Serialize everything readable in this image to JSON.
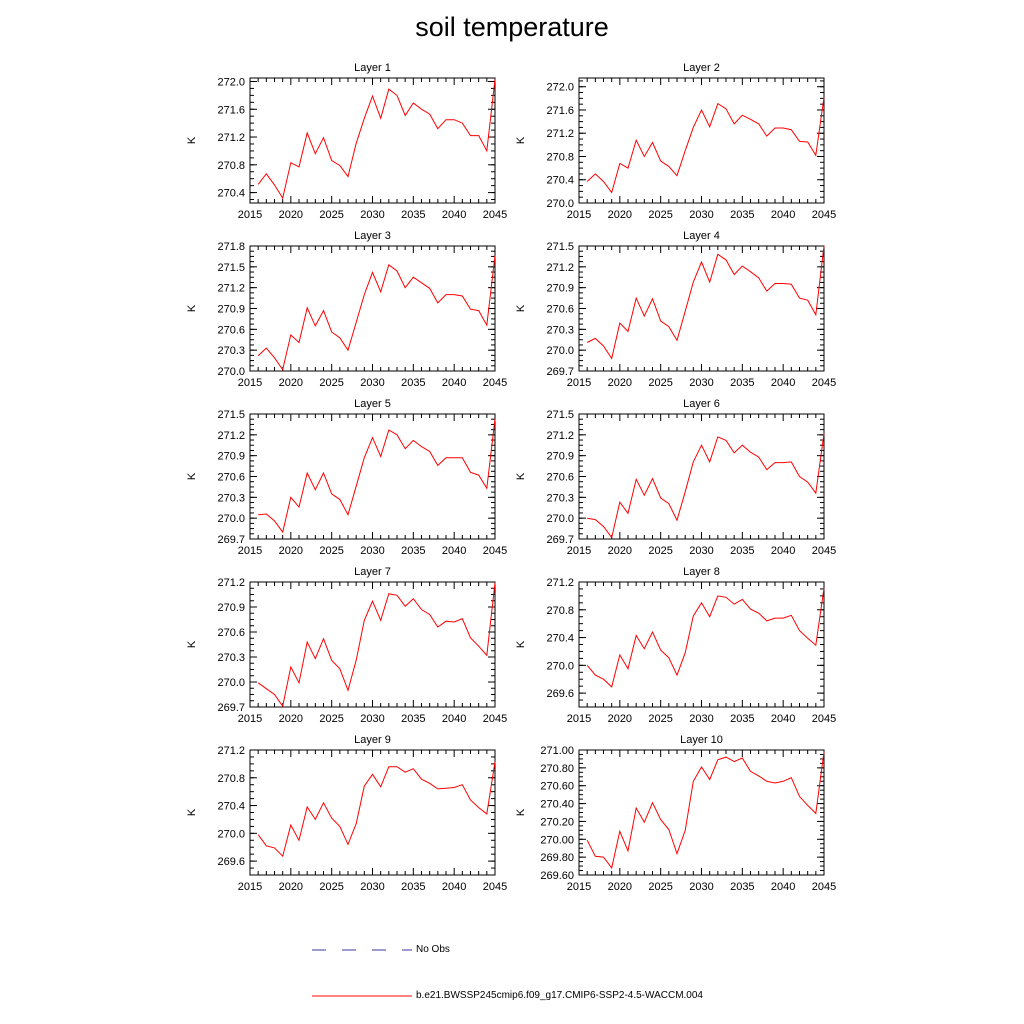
{
  "title": "soil temperature",
  "x_ticks": [
    "2015",
    "2020",
    "2025",
    "2030",
    "2035",
    "2040",
    "2045"
  ],
  "legend": {
    "obs_label": "No Obs",
    "obs_color": "#3a3aa0",
    "model_label": "b.e21.BWSSP245cmip6.f09_g17.CMIP6-SSP2-4.5-WACCM.004",
    "model_color": "#ff0000"
  },
  "chart_data": [
    {
      "type": "line",
      "title": "Layer 1",
      "ylabel": "K",
      "xlim": [
        2015,
        2045
      ],
      "ylim": [
        270.25,
        272.05
      ],
      "yticks": [
        "270.4",
        "270.8",
        "271.2",
        "271.6",
        "272.0"
      ],
      "x": [
        2016,
        2017,
        2018,
        2019,
        2020,
        2021,
        2022,
        2023,
        2024,
        2025,
        2026,
        2027,
        2028,
        2029,
        2030,
        2031,
        2032,
        2033,
        2034,
        2035,
        2036,
        2037,
        2038,
        2039,
        2040,
        2041,
        2042,
        2043,
        2044,
        2045
      ],
      "series": [
        {
          "values": [
            270.52,
            270.67,
            270.51,
            270.32,
            270.83,
            270.77,
            271.26,
            270.96,
            271.19,
            270.86,
            270.79,
            270.63,
            271.11,
            271.47,
            271.79,
            271.47,
            271.89,
            271.8,
            271.51,
            271.69,
            271.6,
            271.53,
            271.32,
            271.45,
            271.45,
            271.4,
            271.22,
            271.22,
            271.0,
            272.03
          ]
        }
      ]
    },
    {
      "type": "line",
      "title": "Layer 2",
      "ylabel": "K",
      "xlim": [
        2015,
        2045
      ],
      "ylim": [
        270.0,
        272.15
      ],
      "yticks": [
        "270.0",
        "270.4",
        "270.8",
        "271.2",
        "271.6",
        "272.0"
      ],
      "x": [
        2016,
        2017,
        2018,
        2019,
        2020,
        2021,
        2022,
        2023,
        2024,
        2025,
        2026,
        2027,
        2028,
        2029,
        2030,
        2031,
        2032,
        2033,
        2034,
        2035,
        2036,
        2037,
        2038,
        2039,
        2040,
        2041,
        2042,
        2043,
        2044,
        2045
      ],
      "series": [
        {
          "values": [
            270.37,
            270.5,
            270.37,
            270.18,
            270.68,
            270.6,
            271.08,
            270.8,
            271.04,
            270.72,
            270.63,
            270.47,
            270.9,
            271.3,
            271.6,
            271.31,
            271.71,
            271.62,
            271.36,
            271.51,
            271.44,
            271.36,
            271.15,
            271.29,
            271.29,
            271.26,
            271.06,
            271.05,
            270.82,
            271.82
          ]
        }
      ]
    },
    {
      "type": "line",
      "title": "Layer 3",
      "ylabel": "K",
      "xlim": [
        2015,
        2045
      ],
      "ylim": [
        270.0,
        271.8
      ],
      "yticks": [
        "270.0",
        "270.3",
        "270.6",
        "270.9",
        "271.2",
        "271.5",
        "271.8"
      ],
      "x": [
        2016,
        2017,
        2018,
        2019,
        2020,
        2021,
        2022,
        2023,
        2024,
        2025,
        2026,
        2027,
        2028,
        2029,
        2030,
        2031,
        2032,
        2033,
        2034,
        2035,
        2036,
        2037,
        2038,
        2039,
        2040,
        2041,
        2042,
        2043,
        2044,
        2045
      ],
      "series": [
        {
          "values": [
            270.22,
            270.33,
            270.19,
            270.02,
            270.52,
            270.41,
            270.91,
            270.65,
            270.87,
            270.56,
            270.48,
            270.3,
            270.7,
            271.1,
            271.42,
            271.14,
            271.53,
            271.44,
            271.2,
            271.35,
            271.27,
            271.19,
            270.98,
            271.1,
            271.1,
            271.08,
            270.89,
            270.87,
            270.66,
            271.66
          ]
        }
      ]
    },
    {
      "type": "line",
      "title": "Layer 4",
      "ylabel": "K",
      "xlim": [
        2015,
        2045
      ],
      "ylim": [
        269.7,
        271.5
      ],
      "yticks": [
        "269.7",
        "270.0",
        "270.3",
        "270.6",
        "270.9",
        "271.2",
        "271.5"
      ],
      "x": [
        2016,
        2017,
        2018,
        2019,
        2020,
        2021,
        2022,
        2023,
        2024,
        2025,
        2026,
        2027,
        2028,
        2029,
        2030,
        2031,
        2032,
        2033,
        2034,
        2035,
        2036,
        2037,
        2038,
        2039,
        2040,
        2041,
        2042,
        2043,
        2044,
        2045
      ],
      "series": [
        {
          "values": [
            270.11,
            270.17,
            270.06,
            269.88,
            270.39,
            270.27,
            270.75,
            270.49,
            270.74,
            270.42,
            270.34,
            270.14,
            270.56,
            270.98,
            271.27,
            270.98,
            271.38,
            271.3,
            271.09,
            271.21,
            271.13,
            271.04,
            270.85,
            270.96,
            270.96,
            270.95,
            270.75,
            270.72,
            270.51,
            271.5
          ]
        }
      ]
    },
    {
      "type": "line",
      "title": "Layer 5",
      "ylabel": "K",
      "xlim": [
        2015,
        2045
      ],
      "ylim": [
        269.7,
        271.5
      ],
      "yticks": [
        "269.7",
        "270.0",
        "270.3",
        "270.6",
        "270.9",
        "271.2",
        "271.5"
      ],
      "x": [
        2016,
        2017,
        2018,
        2019,
        2020,
        2021,
        2022,
        2023,
        2024,
        2025,
        2026,
        2027,
        2028,
        2029,
        2030,
        2031,
        2032,
        2033,
        2034,
        2035,
        2036,
        2037,
        2038,
        2039,
        2040,
        2041,
        2042,
        2043,
        2044,
        2045
      ],
      "series": [
        {
          "values": [
            270.05,
            270.06,
            269.96,
            269.8,
            270.3,
            270.16,
            270.65,
            270.41,
            270.65,
            270.35,
            270.27,
            270.05,
            270.46,
            270.87,
            271.16,
            270.89,
            271.27,
            271.2,
            271.0,
            271.12,
            271.03,
            270.96,
            270.76,
            270.87,
            270.87,
            270.87,
            270.66,
            270.62,
            270.43,
            271.43
          ]
        }
      ]
    },
    {
      "type": "line",
      "title": "Layer 6",
      "ylabel": "K",
      "xlim": [
        2015,
        2045
      ],
      "ylim": [
        269.7,
        271.5
      ],
      "yticks": [
        "269.7",
        "270.0",
        "270.3",
        "270.6",
        "270.9",
        "271.2",
        "271.5"
      ],
      "x": [
        2016,
        2017,
        2018,
        2019,
        2020,
        2021,
        2022,
        2023,
        2024,
        2025,
        2026,
        2027,
        2028,
        2029,
        2030,
        2031,
        2032,
        2033,
        2034,
        2035,
        2036,
        2037,
        2038,
        2039,
        2040,
        2041,
        2042,
        2043,
        2044,
        2045
      ],
      "series": [
        {
          "values": [
            270.0,
            269.98,
            269.88,
            269.72,
            270.23,
            270.07,
            270.56,
            270.33,
            270.57,
            270.29,
            270.21,
            269.97,
            270.38,
            270.81,
            271.05,
            270.81,
            271.17,
            271.12,
            270.94,
            271.05,
            270.95,
            270.88,
            270.7,
            270.8,
            270.8,
            270.81,
            270.6,
            270.52,
            270.36,
            271.22
          ]
        }
      ]
    },
    {
      "type": "line",
      "title": "Layer 7",
      "ylabel": "K",
      "xlim": [
        2015,
        2045
      ],
      "ylim": [
        269.7,
        271.2
      ],
      "yticks": [
        "269.7",
        "270.0",
        "270.3",
        "270.6",
        "270.9",
        "271.2"
      ],
      "x": [
        2016,
        2017,
        2018,
        2019,
        2020,
        2021,
        2022,
        2023,
        2024,
        2025,
        2026,
        2027,
        2028,
        2029,
        2030,
        2031,
        2032,
        2033,
        2034,
        2035,
        2036,
        2037,
        2038,
        2039,
        2040,
        2041,
        2042,
        2043,
        2044,
        2045
      ],
      "series": [
        {
          "values": [
            269.99,
            269.92,
            269.85,
            269.71,
            270.18,
            269.99,
            270.48,
            270.28,
            270.52,
            270.26,
            270.16,
            269.9,
            270.26,
            270.74,
            270.97,
            270.74,
            271.06,
            271.04,
            270.91,
            271.0,
            270.87,
            270.81,
            270.66,
            270.73,
            270.72,
            270.76,
            270.53,
            270.43,
            270.32,
            271.19
          ]
        }
      ]
    },
    {
      "type": "line",
      "title": "Layer 8",
      "ylabel": "K",
      "xlim": [
        2015,
        2045
      ],
      "ylim": [
        269.4,
        271.2
      ],
      "yticks": [
        "269.6",
        "270.0",
        "270.4",
        "270.8",
        "271.2"
      ],
      "x": [
        2016,
        2017,
        2018,
        2019,
        2020,
        2021,
        2022,
        2023,
        2024,
        2025,
        2026,
        2027,
        2028,
        2029,
        2030,
        2031,
        2032,
        2033,
        2034,
        2035,
        2036,
        2037,
        2038,
        2039,
        2040,
        2041,
        2042,
        2043,
        2044,
        2045
      ],
      "series": [
        {
          "values": [
            270.0,
            269.86,
            269.8,
            269.69,
            270.15,
            269.95,
            270.43,
            270.24,
            270.48,
            270.22,
            270.11,
            269.86,
            270.18,
            270.71,
            270.9,
            270.7,
            271.0,
            270.98,
            270.88,
            270.95,
            270.81,
            270.75,
            270.64,
            270.68,
            270.68,
            270.72,
            270.5,
            270.39,
            270.29,
            271.11
          ]
        }
      ]
    },
    {
      "type": "line",
      "title": "Layer 9",
      "ylabel": "K",
      "xlim": [
        2015,
        2045
      ],
      "ylim": [
        269.4,
        271.2
      ],
      "yticks": [
        "269.6",
        "270.0",
        "270.4",
        "270.8",
        "271.2"
      ],
      "x": [
        2016,
        2017,
        2018,
        2019,
        2020,
        2021,
        2022,
        2023,
        2024,
        2025,
        2026,
        2027,
        2028,
        2029,
        2030,
        2031,
        2032,
        2033,
        2034,
        2035,
        2036,
        2037,
        2038,
        2039,
        2040,
        2041,
        2042,
        2043,
        2044,
        2045
      ],
      "series": [
        {
          "values": [
            269.98,
            269.82,
            269.79,
            269.67,
            270.12,
            269.9,
            270.38,
            270.2,
            270.44,
            270.22,
            270.1,
            269.84,
            270.14,
            270.68,
            270.85,
            270.67,
            270.96,
            270.96,
            270.88,
            270.93,
            270.78,
            270.72,
            270.64,
            270.65,
            270.66,
            270.7,
            270.48,
            270.37,
            270.28,
            271.03
          ]
        }
      ]
    },
    {
      "type": "line",
      "title": "Layer 10",
      "ylabel": "K",
      "xlim": [
        2015,
        2045
      ],
      "ylim": [
        269.6,
        271.0
      ],
      "yticks": [
        "269.60",
        "269.80",
        "270.00",
        "270.20",
        "270.40",
        "270.60",
        "270.80",
        "271.00"
      ],
      "x": [
        2016,
        2017,
        2018,
        2019,
        2020,
        2021,
        2022,
        2023,
        2024,
        2025,
        2026,
        2027,
        2028,
        2029,
        2030,
        2031,
        2032,
        2033,
        2034,
        2035,
        2036,
        2037,
        2038,
        2039,
        2040,
        2041,
        2042,
        2043,
        2044,
        2045
      ],
      "series": [
        {
          "values": [
            269.99,
            269.81,
            269.8,
            269.68,
            270.09,
            269.87,
            270.35,
            270.19,
            270.41,
            270.22,
            270.11,
            269.84,
            270.1,
            270.65,
            270.81,
            270.67,
            270.89,
            270.92,
            270.87,
            270.91,
            270.76,
            270.71,
            270.65,
            270.63,
            270.65,
            270.69,
            270.48,
            270.38,
            270.29,
            270.98
          ]
        }
      ]
    }
  ]
}
